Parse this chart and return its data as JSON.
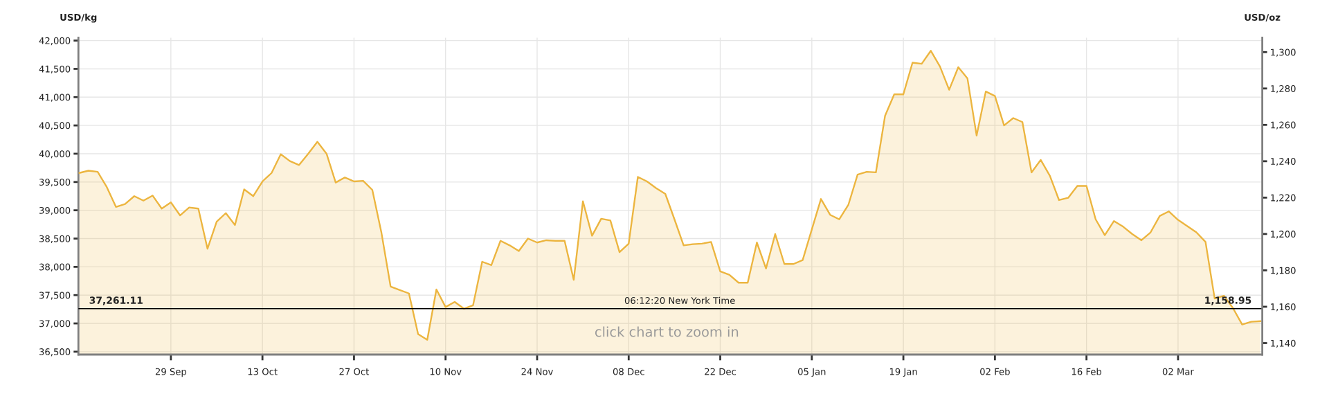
{
  "chart_data": {
    "type": "area",
    "ylabel": "USD/kg",
    "y2label": "USD/oz",
    "categories": [
      null,
      null,
      null,
      null,
      null,
      null,
      null,
      null,
      null,
      null,
      "29 Sep",
      null,
      null,
      null,
      null,
      null,
      null,
      null,
      null,
      null,
      "13 Oct",
      null,
      null,
      null,
      null,
      null,
      null,
      null,
      null,
      null,
      "27 Oct",
      null,
      null,
      null,
      null,
      null,
      null,
      null,
      null,
      null,
      "10 Nov",
      null,
      null,
      null,
      null,
      null,
      null,
      null,
      null,
      null,
      "24 Nov",
      null,
      null,
      null,
      null,
      null,
      null,
      null,
      null,
      null,
      "08 Dec",
      null,
      null,
      null,
      null,
      null,
      null,
      null,
      null,
      null,
      "22 Dec",
      null,
      null,
      null,
      null,
      null,
      null,
      null,
      null,
      null,
      "05 Jan",
      null,
      null,
      null,
      null,
      null,
      null,
      null,
      null,
      null,
      "19 Jan",
      null,
      null,
      null,
      null,
      null,
      null,
      null,
      null,
      null,
      "02 Feb",
      null,
      null,
      null,
      null,
      null,
      null,
      null,
      null,
      null,
      "16 Feb",
      null,
      null,
      null,
      null,
      null,
      null,
      null,
      null,
      null,
      "02 Mar",
      null,
      null,
      null,
      null,
      null,
      null,
      null,
      null,
      null
    ],
    "series": [
      {
        "color": "#ecb53f",
        "values": [
          39660,
          39700,
          39680,
          39410,
          39060,
          39110,
          39250,
          39170,
          39260,
          39030,
          39140,
          38910,
          39050,
          39030,
          38320,
          38800,
          38950,
          38740,
          39370,
          39250,
          39510,
          39660,
          39990,
          39870,
          39800,
          40000,
          40210,
          40000,
          39490,
          39580,
          39510,
          39520,
          39360,
          38600,
          37650,
          37590,
          37530,
          36810,
          36710,
          37600,
          37290,
          37380,
          37260,
          37320,
          38090,
          38030,
          38460,
          38380,
          38280,
          38500,
          38430,
          38470,
          38460,
          38460,
          37770,
          39160,
          38550,
          38850,
          38820,
          38260,
          38410,
          39590,
          39510,
          39390,
          39290,
          38840,
          38380,
          38400,
          38410,
          38440,
          37920,
          37860,
          37720,
          37720,
          38430,
          37970,
          38580,
          38050,
          38050,
          38120,
          38660,
          39200,
          38920,
          38840,
          39100,
          39630,
          39680,
          39670,
          40670,
          41050,
          41050,
          41610,
          41590,
          41820,
          41540,
          41130,
          41530,
          41330,
          40320,
          41100,
          41020,
          40500,
          40630,
          40560,
          39670,
          39890,
          39610,
          39180,
          39220,
          39430,
          39430,
          38840,
          38560,
          38810,
          38710,
          38580,
          38470,
          38610,
          38900,
          38980,
          38830,
          38720,
          38610,
          38440,
          37440,
          37490,
          37270,
          36980,
          37030,
          37040
        ]
      }
    ],
    "ylim": [
      36450,
      42050
    ],
    "yticks": [
      {
        "value": 36500,
        "label": "36,500"
      },
      {
        "value": 37000,
        "label": "37,000"
      },
      {
        "value": 37500,
        "label": "37,500"
      },
      {
        "value": 38000,
        "label": "38,000"
      },
      {
        "value": 38500,
        "label": "38,500"
      },
      {
        "value": 39000,
        "label": "39,000"
      },
      {
        "value": 39500,
        "label": "39,500"
      },
      {
        "value": 40000,
        "label": "40,000"
      },
      {
        "value": 40500,
        "label": "40,500"
      },
      {
        "value": 41000,
        "label": "41,000"
      },
      {
        "value": 41500,
        "label": "41,500"
      },
      {
        "value": 42000,
        "label": "42,000"
      }
    ],
    "y2lim": [
      1133.72,
      1307.9
    ],
    "y2ticks": [
      {
        "value": 1140,
        "label": "1,140"
      },
      {
        "value": 1160,
        "label": "1,160"
      },
      {
        "value": 1180,
        "label": "1,180"
      },
      {
        "value": 1200,
        "label": "1,200"
      },
      {
        "value": 1220,
        "label": "1,220"
      },
      {
        "value": 1240,
        "label": "1,240"
      },
      {
        "value": 1260,
        "label": "1,260"
      },
      {
        "value": 1280,
        "label": "1,280"
      },
      {
        "value": 1300,
        "label": "1,300"
      }
    ],
    "ref_lines": [
      {
        "axis": "y",
        "value": 37261.11,
        "label": "37,261.11",
        "color": "#000000"
      }
    ],
    "annotations": [
      "06:12:20 New York Time",
      "1,158.95",
      "click chart to zoom in"
    ],
    "grid": true
  }
}
